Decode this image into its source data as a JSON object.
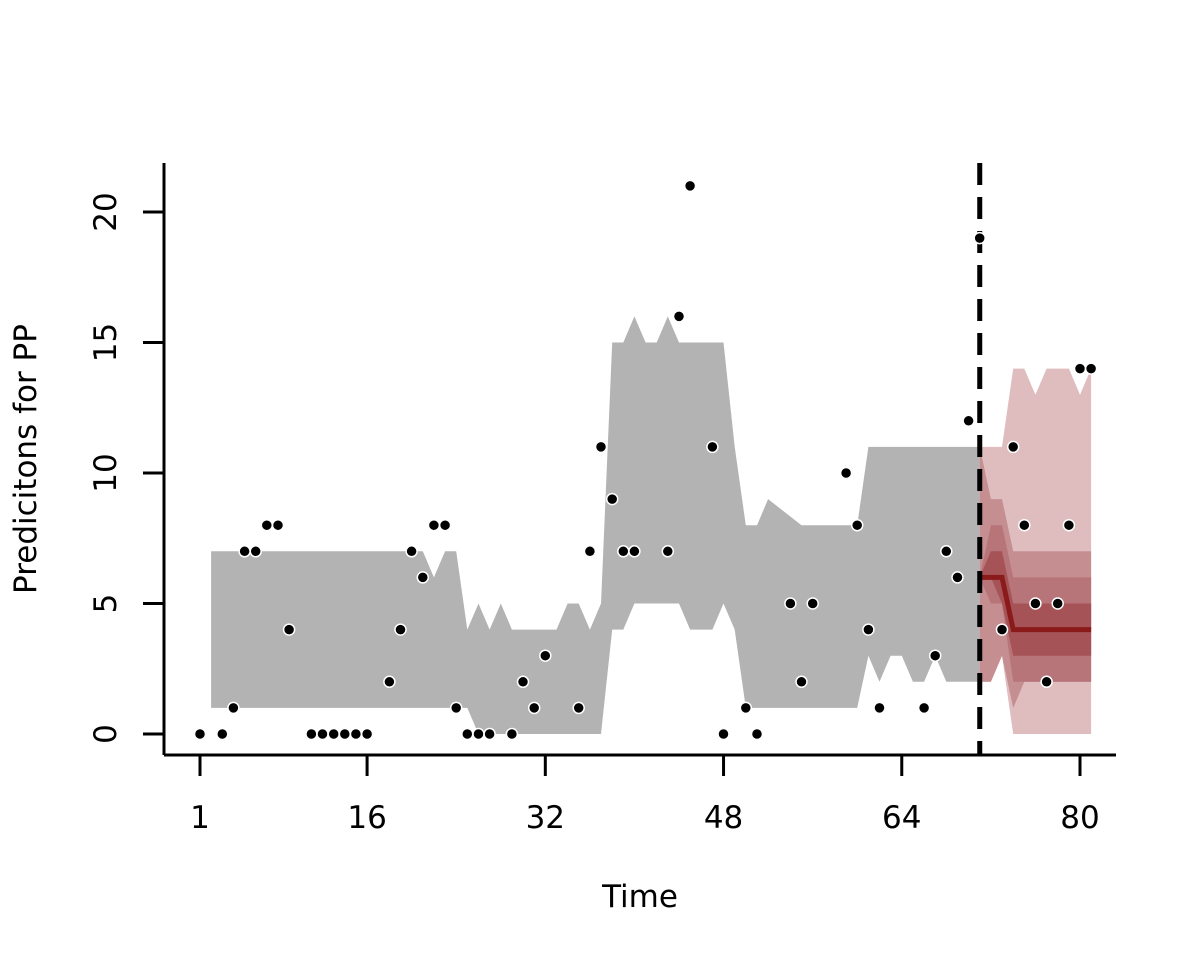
{
  "chart_data": {
    "type": "scatter",
    "title": "",
    "xlabel": "Time",
    "ylabel": "Predicitons for PP",
    "xlim": [
      -2.2,
      83.2
    ],
    "ylim": [
      -0.8,
      21.8
    ],
    "x_ticks": [
      1,
      16,
      32,
      48,
      64,
      80
    ],
    "y_ticks": [
      0,
      5,
      10,
      15,
      20
    ],
    "grid": false,
    "legend": "none",
    "forecast_start": 71,
    "colors": {
      "fit_band": "#b3b3b3",
      "forecast_outer": "#dfbcbe",
      "forecast_mid": "#c58e91",
      "forecast_inner": "#a65357",
      "forecast_line": "#8b1a1a",
      "points": "#000000"
    },
    "fit_band": {
      "x": [
        2,
        21,
        22,
        23,
        24,
        25,
        26,
        27,
        28,
        29,
        30,
        33,
        34,
        35,
        36,
        37,
        38,
        39,
        40,
        41,
        42,
        43,
        44,
        45,
        46,
        47,
        48,
        49,
        50,
        51,
        52,
        55,
        56,
        57,
        59,
        60,
        61,
        62,
        63,
        64,
        65,
        66,
        67,
        68,
        71
      ],
      "upper": [
        7,
        7,
        6,
        7,
        7,
        4,
        5,
        4,
        5,
        4,
        4,
        4,
        5,
        5,
        4,
        5,
        15,
        15,
        16,
        15,
        15,
        16,
        15,
        15,
        15,
        15,
        15,
        11,
        8,
        8,
        9,
        8,
        8,
        8,
        8,
        8,
        11,
        11,
        11,
        11,
        11,
        11,
        11,
        11,
        11
      ],
      "lower": [
        1,
        1,
        1,
        1,
        1,
        1,
        0,
        0,
        0,
        0,
        0,
        0,
        0,
        0,
        0,
        0,
        4,
        4,
        5,
        5,
        5,
        5,
        5,
        4,
        4,
        4,
        5,
        4,
        1,
        1,
        1,
        1,
        1,
        1,
        1,
        1,
        3,
        2,
        3,
        3,
        2,
        2,
        3,
        2,
        2
      ]
    },
    "forecast": {
      "x": [
        71,
        72,
        73,
        74,
        75,
        76,
        77,
        78,
        79,
        80,
        81
      ],
      "mean": [
        6,
        6,
        6,
        4,
        4,
        4,
        4,
        4,
        4,
        4,
        4
      ],
      "inner_upper": [
        6,
        7,
        7,
        5,
        5,
        5,
        5,
        5,
        5,
        5,
        5
      ],
      "inner_lower": [
        6,
        6,
        5,
        3,
        3,
        3,
        3,
        3,
        3,
        3,
        3
      ],
      "mid_upper": [
        6,
        8,
        8,
        6,
        6,
        6,
        6,
        6,
        6,
        6,
        6
      ],
      "mid_lower": [
        6,
        5,
        5,
        2,
        2,
        2,
        2,
        2,
        2,
        2,
        2
      ],
      "outer_upper": [
        11,
        9,
        9,
        7,
        7,
        7,
        7,
        7,
        7,
        7,
        7
      ],
      "outer_lower": [
        2,
        2,
        3,
        1,
        2,
        2,
        2,
        2,
        2,
        2,
        2
      ],
      "wide_upper": [
        11,
        11,
        11,
        14,
        14,
        13,
        14,
        14,
        14,
        13,
        14
      ],
      "wide_lower": [
        2,
        2,
        3,
        0,
        0,
        0,
        0,
        0,
        0,
        0,
        0
      ]
    },
    "points": {
      "x": [
        1,
        3,
        4,
        5,
        6,
        7,
        8,
        9,
        11,
        12,
        13,
        14,
        15,
        16,
        18,
        19,
        20,
        21,
        22,
        23,
        24,
        25,
        26,
        27,
        29,
        30,
        31,
        32,
        35,
        36,
        37,
        38,
        39,
        40,
        43,
        44,
        45,
        47,
        48,
        50,
        51,
        54,
        55,
        56,
        59,
        60,
        61,
        62,
        66,
        67,
        68,
        69,
        70,
        71,
        73,
        74,
        75,
        76,
        77,
        78,
        79,
        80,
        81
      ],
      "y": [
        0,
        0,
        1,
        7,
        7,
        8,
        8,
        4,
        0,
        0,
        0,
        0,
        0,
        0,
        2,
        4,
        7,
        6,
        8,
        8,
        1,
        0,
        0,
        0,
        0,
        2,
        1,
        3,
        1,
        7,
        11,
        9,
        7,
        7,
        7,
        16,
        21,
        11,
        0,
        1,
        0,
        5,
        2,
        5,
        10,
        8,
        4,
        1,
        1,
        3,
        7,
        6,
        12,
        19,
        4,
        11,
        8,
        5,
        2,
        5,
        8,
        14,
        14
      ]
    }
  }
}
